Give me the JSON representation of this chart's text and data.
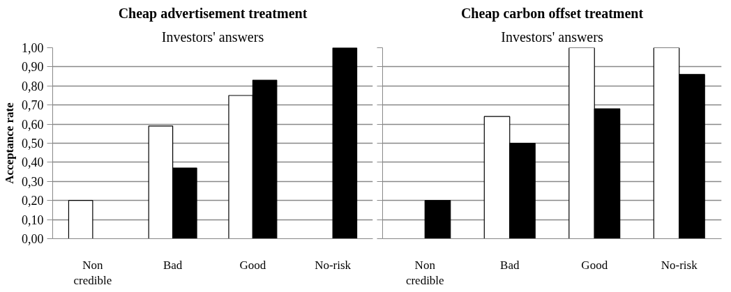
{
  "chart_data": [
    {
      "type": "bar",
      "title": "Cheap advertisement treatment",
      "subtitle": "Investors' answers",
      "ylabel": "Acceptance rate",
      "categories": [
        "Non credible",
        "Bad",
        "Good",
        "No-risk"
      ],
      "series": [
        {
          "color": "#ffffff",
          "values": [
            0.2,
            0.59,
            0.75,
            null
          ]
        },
        {
          "color": "#000000",
          "values": [
            null,
            0.37,
            0.83,
            1.0
          ]
        }
      ],
      "ylim": [
        0,
        1
      ],
      "yticks": [
        {
          "value": 0,
          "label": "0,00"
        },
        {
          "value": 0.1,
          "label": "0,10"
        },
        {
          "value": 0.2,
          "label": "0,20"
        },
        {
          "value": 0.3,
          "label": "0,30"
        },
        {
          "value": 0.4,
          "label": "0,40"
        },
        {
          "value": 0.5,
          "label": "0,50"
        },
        {
          "value": 0.6,
          "label": "0,60"
        },
        {
          "value": 0.7,
          "label": "0,70"
        },
        {
          "value": 0.8,
          "label": "0,80"
        },
        {
          "value": 0.9,
          "label": "0,90"
        },
        {
          "value": 1,
          "label": "1,00"
        }
      ],
      "grid": "y"
    },
    {
      "type": "bar",
      "title": "Cheap carbon offset treatment",
      "subtitle": "Investors' answers",
      "categories": [
        "Non credible",
        "Bad",
        "Good",
        "No-risk"
      ],
      "series": [
        {
          "color": "#ffffff",
          "values": [
            null,
            0.64,
            1.0,
            1.0
          ]
        },
        {
          "color": "#000000",
          "values": [
            0.2,
            0.5,
            0.68,
            0.86
          ]
        }
      ],
      "ylim": [
        0,
        1
      ],
      "yticks": [
        {
          "value": 0,
          "label": null
        },
        {
          "value": 0.1,
          "label": null
        },
        {
          "value": 0.2,
          "label": null
        },
        {
          "value": 0.3,
          "label": null
        },
        {
          "value": 0.4,
          "label": null
        },
        {
          "value": 0.5,
          "label": null
        },
        {
          "value": 0.6,
          "label": null
        },
        {
          "value": 0.7,
          "label": null
        },
        {
          "value": 0.8,
          "label": null
        },
        {
          "value": 0.9,
          "label": null
        },
        {
          "value": 1,
          "label": null
        }
      ],
      "grid": "y",
      "tick_labels": "x"
    }
  ]
}
